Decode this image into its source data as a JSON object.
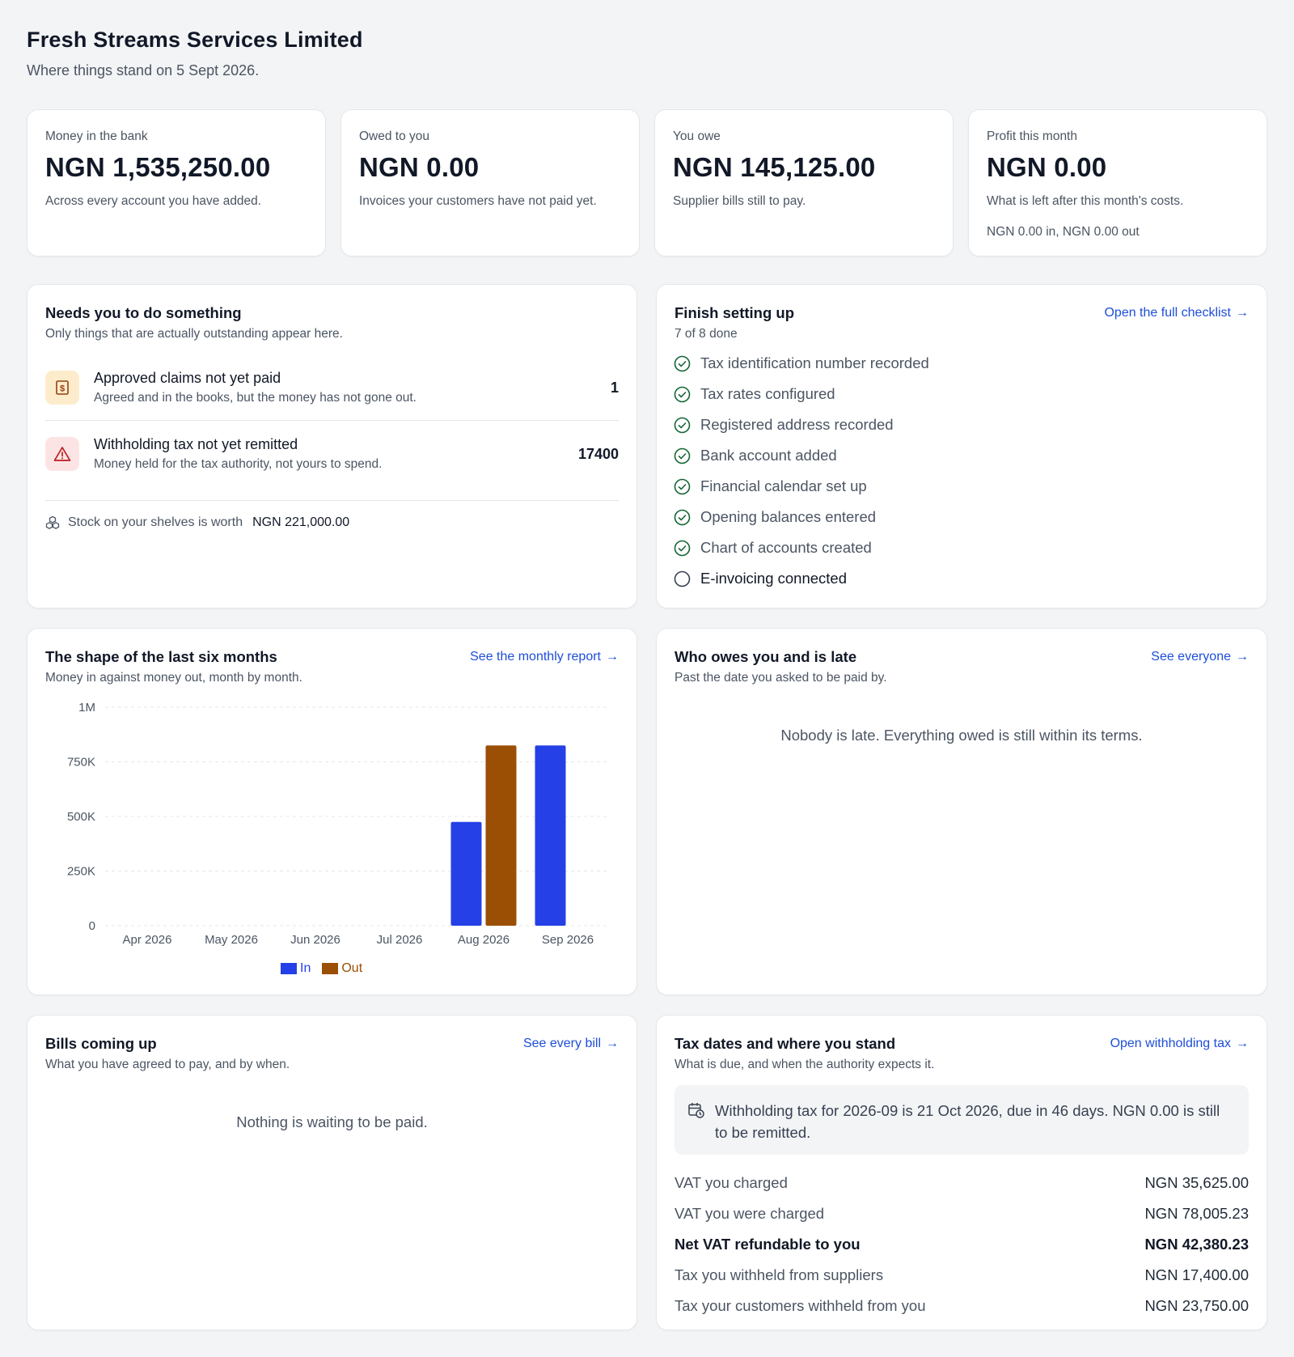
{
  "header": {
    "title": "Fresh Streams Services Limited",
    "subtitle": "Where things stand on 5 Sept 2026."
  },
  "kpis": [
    {
      "label": "Money in the bank",
      "value": "NGN 1,535,250.00",
      "desc": "Across every account you have added.",
      "extra": ""
    },
    {
      "label": "Owed to you",
      "value": "NGN 0.00",
      "desc": "Invoices your customers have not paid yet.",
      "extra": ""
    },
    {
      "label": "You owe",
      "value": "NGN 145,125.00",
      "desc": "Supplier bills still to pay.",
      "extra": ""
    },
    {
      "label": "Profit this month",
      "value": "NGN 0.00",
      "desc": "What is left after this month's costs.",
      "extra": "NGN 0.00 in, NGN 0.00 out"
    }
  ],
  "needs": {
    "title": "Needs you to do something",
    "subtitle": "Only things that are actually outstanding appear here.",
    "items": [
      {
        "title": "Approved claims not yet paid",
        "desc": "Agreed and in the books, but the money has not gone out.",
        "count": "1",
        "icon": "receipt-icon"
      },
      {
        "title": "Withholding tax not yet remitted",
        "desc": "Money held for the tax authority, not yours to spend.",
        "count": "17400",
        "icon": "warning-icon"
      }
    ],
    "stock_label": "Stock on your shelves is worth",
    "stock_value": "NGN 221,000.00"
  },
  "setup": {
    "title": "Finish setting up",
    "subtitle": "7 of 8 done",
    "link": "Open the full checklist",
    "items": [
      {
        "label": "Tax identification number recorded",
        "done": true
      },
      {
        "label": "Tax rates configured",
        "done": true
      },
      {
        "label": "Registered address recorded",
        "done": true
      },
      {
        "label": "Bank account added",
        "done": true
      },
      {
        "label": "Financial calendar set up",
        "done": true
      },
      {
        "label": "Opening balances entered",
        "done": true
      },
      {
        "label": "Chart of accounts created",
        "done": true
      },
      {
        "label": "E-invoicing connected",
        "done": false
      }
    ]
  },
  "shape": {
    "title": "The shape of the last six months",
    "subtitle": "Money in against money out, month by month.",
    "link": "See the monthly report"
  },
  "chart_data": {
    "type": "bar",
    "categories": [
      "Apr 2026",
      "May 2026",
      "Jun 2026",
      "Jul 2026",
      "Aug 2026",
      "Sep 2026"
    ],
    "series": [
      {
        "name": "In",
        "color": "#2440e6",
        "values": [
          0,
          0,
          0,
          0,
          475000,
          825000
        ]
      },
      {
        "name": "Out",
        "color": "#9a4f05",
        "values": [
          0,
          0,
          0,
          0,
          825000,
          0
        ]
      }
    ],
    "ylim": [
      0,
      1000000
    ],
    "yticks": [
      0,
      250000,
      500000,
      750000,
      1000000
    ],
    "ytick_labels": [
      "0",
      "250K",
      "500K",
      "750K",
      "1M"
    ],
    "grid": true,
    "legend": "bottom-center"
  },
  "late": {
    "title": "Who owes you and is late",
    "subtitle": "Past the date you asked to be paid by.",
    "link": "See everyone",
    "empty": "Nobody is late. Everything owed is still within its terms."
  },
  "bills": {
    "title": "Bills coming up",
    "subtitle": "What you have agreed to pay, and by when.",
    "link": "See every bill",
    "empty": "Nothing is waiting to be paid."
  },
  "tax": {
    "title": "Tax dates and where you stand",
    "subtitle": "What is due, and when the authority expects it.",
    "link": "Open withholding tax",
    "notice": "Withholding tax for 2026-09 is 21 Oct 2026, due in 46 days. NGN 0.00 is still to be remitted.",
    "rows": [
      {
        "label": "VAT you charged",
        "value": "NGN 35,625.00",
        "bold": false
      },
      {
        "label": "VAT you were charged",
        "value": "NGN 78,005.23",
        "bold": false
      },
      {
        "label": "Net VAT refundable to you",
        "value": "NGN 42,380.23",
        "bold": true
      },
      {
        "label": "Tax you withheld from suppliers",
        "value": "NGN 17,400.00",
        "bold": false
      },
      {
        "label": "Tax your customers withheld from you",
        "value": "NGN 23,750.00",
        "bold": false
      }
    ]
  },
  "colors": {
    "accent": "#1d4ed8",
    "success": "#166534",
    "warning_bg": "#fdeccc",
    "danger_bg": "#fde4e4"
  }
}
